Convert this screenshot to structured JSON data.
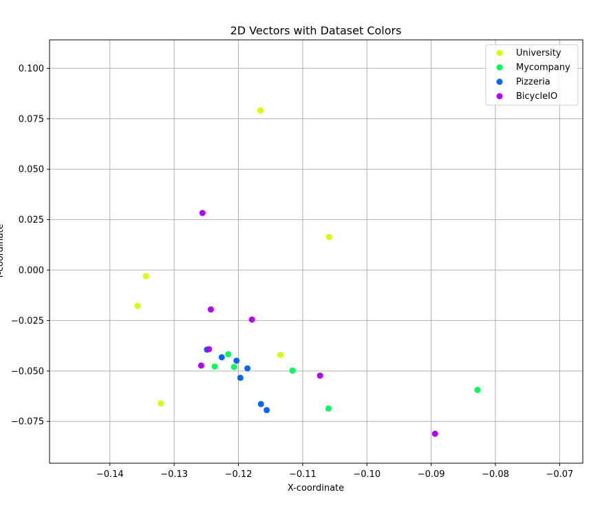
{
  "chart_data": {
    "type": "scatter",
    "title": "2D Vectors with Dataset Colors",
    "xlabel": "X-coordinate",
    "ylabel": "Y-coordinate",
    "xlim": [
      -0.1494,
      -0.0664
    ],
    "ylim": [
      -0.0957,
      0.1141
    ],
    "xticks": [
      -0.14,
      -0.13,
      -0.12,
      -0.11,
      -0.1,
      -0.09,
      -0.08,
      -0.07
    ],
    "xtick_labels": [
      "−0.14",
      "−0.13",
      "−0.12",
      "−0.11",
      "−0.10",
      "−0.09",
      "−0.08",
      "−0.07"
    ],
    "yticks": [
      -0.075,
      -0.05,
      -0.025,
      0.0,
      0.025,
      0.05,
      0.075,
      0.1
    ],
    "ytick_labels": [
      "−0.075",
      "−0.050",
      "−0.025",
      "0.000",
      "0.025",
      "0.050",
      "0.075",
      "0.100"
    ],
    "grid": true,
    "legend_position": "top-right",
    "series": [
      {
        "name": "University",
        "color": "#d4ff00",
        "points": [
          [
            -0.1166,
            0.0791
          ],
          [
            -0.1059,
            0.0164
          ],
          [
            -0.1344,
            -0.003
          ],
          [
            -0.1357,
            -0.0177
          ],
          [
            -0.1135,
            -0.042
          ],
          [
            -0.1321,
            -0.0661
          ]
        ]
      },
      {
        "name": "Mycompany",
        "color": "#00ff5a",
        "points": [
          [
            -0.1216,
            -0.0417
          ],
          [
            -0.1237,
            -0.0478
          ],
          [
            -0.1207,
            -0.048
          ],
          [
            -0.1116,
            -0.0498
          ],
          [
            -0.0828,
            -0.0594
          ],
          [
            -0.106,
            -0.0686
          ]
        ]
      },
      {
        "name": "Pizzeria",
        "color": "#0066ff",
        "points": [
          [
            -0.1249,
            -0.0394
          ],
          [
            -0.1226,
            -0.0432
          ],
          [
            -0.1203,
            -0.0449
          ],
          [
            -0.1186,
            -0.0487
          ],
          [
            -0.1197,
            -0.0534
          ],
          [
            -0.1165,
            -0.0664
          ],
          [
            -0.1156,
            -0.0694
          ]
        ]
      },
      {
        "name": "BicycleIO",
        "color": "#b400ff",
        "points": [
          [
            -0.1256,
            0.0283
          ],
          [
            -0.1243,
            -0.0195
          ],
          [
            -0.1179,
            -0.0245
          ],
          [
            -0.1246,
            -0.0392
          ],
          [
            -0.1258,
            -0.0473
          ],
          [
            -0.1073,
            -0.0523
          ],
          [
            -0.0894,
            -0.0811
          ]
        ]
      }
    ]
  }
}
